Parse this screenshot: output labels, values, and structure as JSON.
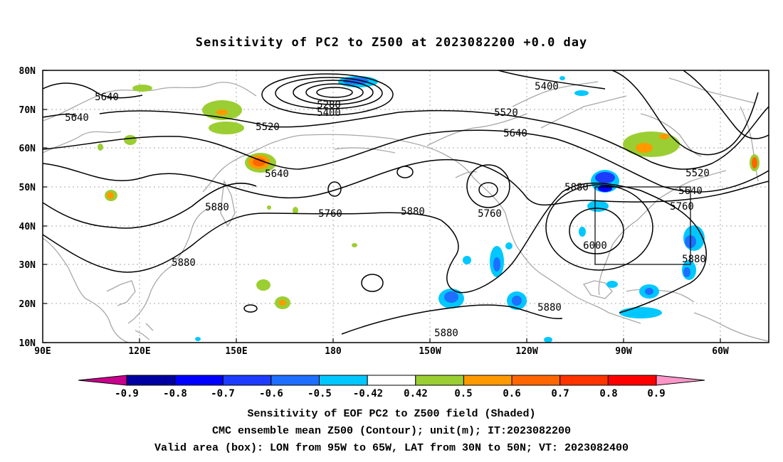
{
  "title": "Sensitivity of PC2 to Z500 at 2023082200 +0.0 day",
  "lat_labels": [
    "80N",
    "70N",
    "60N",
    "50N",
    "40N",
    "30N",
    "20N",
    "10N"
  ],
  "lon_labels": [
    "90E",
    "120E",
    "150E",
    "180",
    "150W",
    "120W",
    "90W",
    "60W"
  ],
  "contour_labels": [
    "5640",
    "5640",
    "5640",
    "5280",
    "5400",
    "5520",
    "5520",
    "5640",
    "5400",
    "5520",
    "5640",
    "5760",
    "5880",
    "5760",
    "5880",
    "5760",
    "5880",
    "6000",
    "5880",
    "5880",
    "5880",
    "5880"
  ],
  "colorbar": {
    "labels": [
      "-0.9",
      "-0.8",
      "-0.7",
      "-0.6",
      "-0.5",
      "-0.42",
      "0.42",
      "0.5",
      "0.6",
      "0.7",
      "0.8",
      "0.9"
    ],
    "colors": [
      "#0000a0",
      "#0000ff",
      "#1e3cff",
      "#1e6eff",
      "#00c8ff",
      "#ffffff",
      "#9bce32",
      "#ff9900",
      "#ff6600",
      "#ff3300",
      "#ff0000"
    ],
    "low_end_color": "#c8008c",
    "high_end_color": "#ff96c8"
  },
  "valid_box": {
    "lon_min": -95,
    "lon_max": -65,
    "lat_min": 30,
    "lat_max": 50
  },
  "caption_lines": [
    "Sensitivity of EOF PC2 to Z500 field (Shaded)",
    "CMC ensemble mean Z500 (Contour); unit(m); IT:2023082200",
    "Valid area (box): LON from 95W to 65W, LAT from 30N to 50N; VT: 2023082400"
  ]
}
